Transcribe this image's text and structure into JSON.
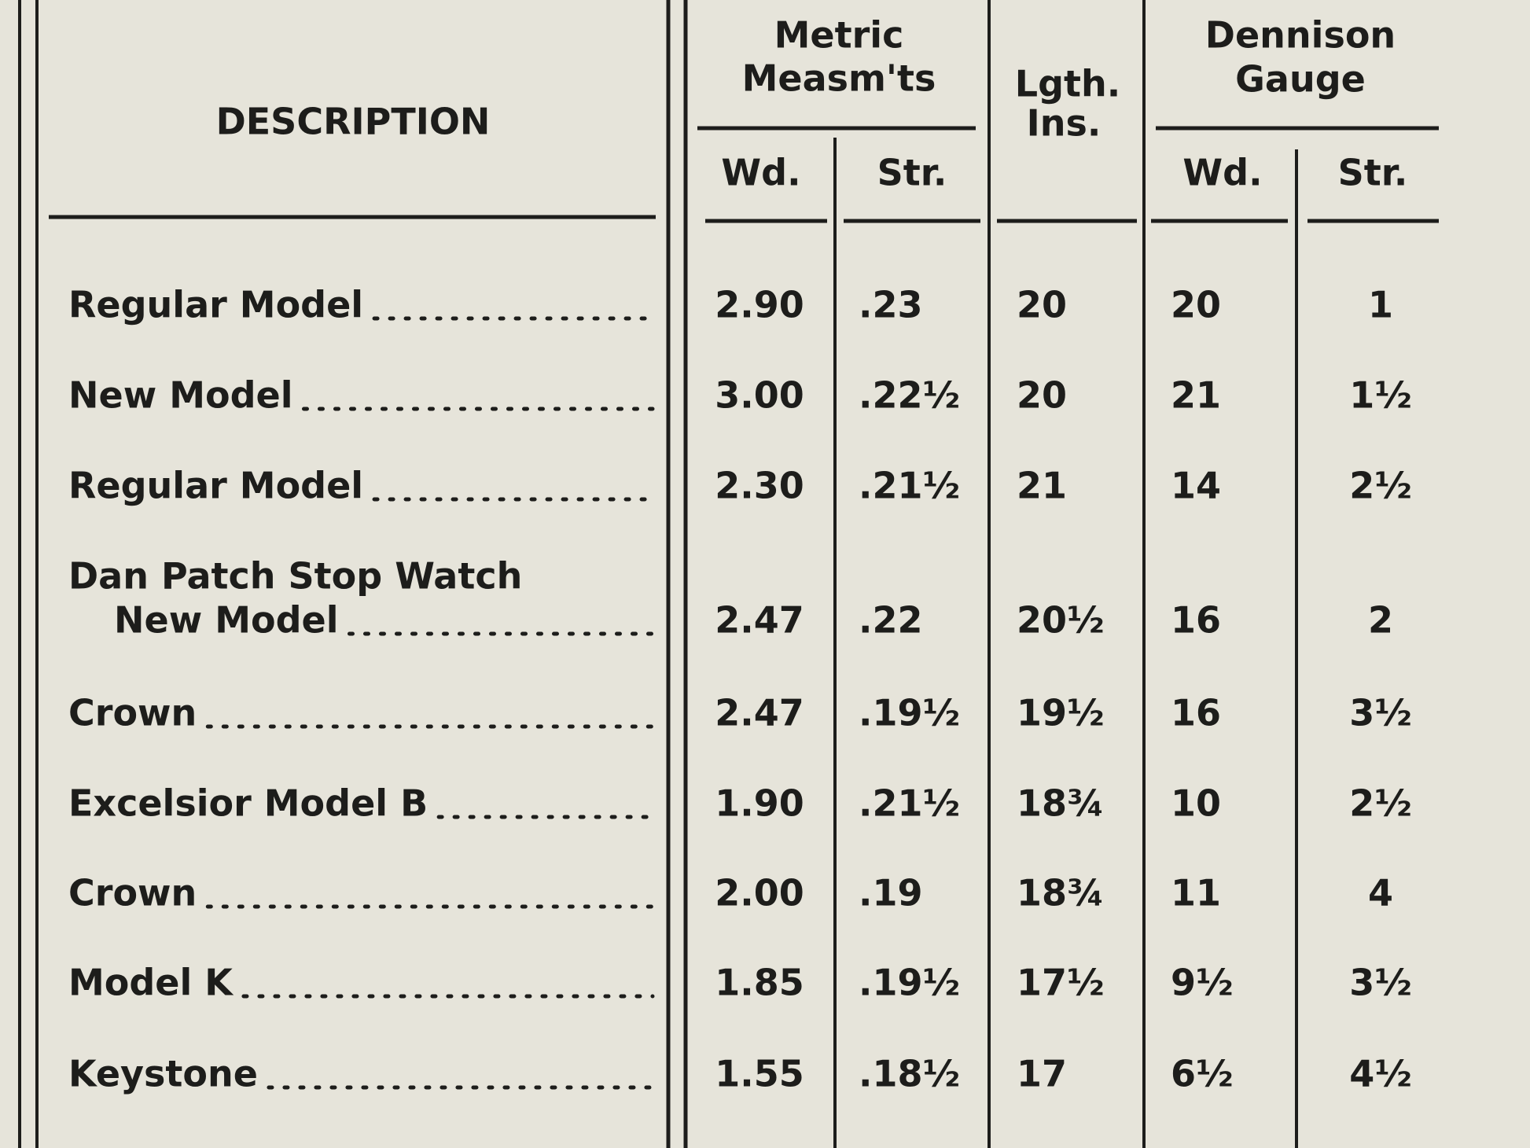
{
  "header": {
    "description": "DESCRIPTION",
    "metric": {
      "title": [
        "Metric",
        "Measm'ts"
      ],
      "wd": "Wd.",
      "str": "Str."
    },
    "length": [
      "Lgth.",
      "Ins."
    ],
    "dennison": {
      "title": [
        "Dennison",
        "Gauge"
      ],
      "wd": "Wd.",
      "str": "Str."
    }
  },
  "table": {
    "rows": [
      {
        "description": [
          "Regular Model"
        ],
        "metric_wd": "2.90",
        "metric_str": ".23",
        "length": "20",
        "dennison_wd": "20",
        "dennison_str": "1"
      },
      {
        "description": [
          "New Model"
        ],
        "metric_wd": "3.00",
        "metric_str": ".22½",
        "length": "20",
        "dennison_wd": "21",
        "dennison_str": "1½"
      },
      {
        "description": [
          "Regular Model"
        ],
        "metric_wd": "2.30",
        "metric_str": ".21½",
        "length": "21",
        "dennison_wd": "14",
        "dennison_str": "2½"
      },
      {
        "description": [
          "Dan Patch Stop Watch",
          "New Model"
        ],
        "metric_wd": "2.47",
        "metric_str": ".22",
        "length": "20½",
        "dennison_wd": "16",
        "dennison_str": "2"
      },
      {
        "description": [
          "Crown"
        ],
        "metric_wd": "2.47",
        "metric_str": ".19½",
        "length": "19½",
        "dennison_wd": "16",
        "dennison_str": "3½"
      },
      {
        "description": [
          "Excelsior Model B"
        ],
        "metric_wd": "1.90",
        "metric_str": ".21½",
        "length": "18¾",
        "dennison_wd": "10",
        "dennison_str": "2½"
      },
      {
        "description": [
          "Crown"
        ],
        "metric_wd": "2.00",
        "metric_str": ".19",
        "length": "18¾",
        "dennison_wd": "11",
        "dennison_str": "4"
      },
      {
        "description": [
          "Model K"
        ],
        "metric_wd": "1.85",
        "metric_str": ".19½",
        "length": "17½",
        "dennison_wd": "9½",
        "dennison_str": "3½"
      },
      {
        "description": [
          "Keystone"
        ],
        "metric_wd": "1.55",
        "metric_str": ".18½",
        "length": "17",
        "dennison_wd": "6½",
        "dennison_str": "4½"
      }
    ]
  }
}
